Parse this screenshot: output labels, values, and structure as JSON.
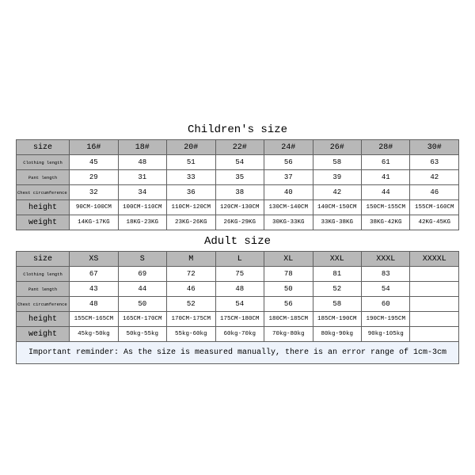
{
  "colors": {
    "headerBg": "#b8b8b8",
    "cellBg": "#ffffff",
    "border": "#606060",
    "noteBg": "#eef3fb",
    "text": "#000000"
  },
  "children": {
    "title": "Children's size",
    "colHeaders": [
      "size",
      "16#",
      "18#",
      "20#",
      "22#",
      "24#",
      "26#",
      "28#",
      "30#"
    ],
    "rows": [
      {
        "label": "Clothing length",
        "small": true,
        "vals": [
          "45",
          "48",
          "51",
          "54",
          "56",
          "58",
          "61",
          "63"
        ]
      },
      {
        "label": "Pant length",
        "small": true,
        "vals": [
          "29",
          "31",
          "33",
          "35",
          "37",
          "39",
          "41",
          "42"
        ]
      },
      {
        "label": "Chest circumference 1/2",
        "small": true,
        "vals": [
          "32",
          "34",
          "36",
          "38",
          "40",
          "42",
          "44",
          "46"
        ]
      },
      {
        "label": "height",
        "small": false,
        "valsSmall": true,
        "vals": [
          "90CM-100CM",
          "100CM-110CM",
          "110CM-120CM",
          "120CM-130CM",
          "130CM-140CM",
          "140CM-150CM",
          "150CM-155CM",
          "155CM-160CM"
        ]
      },
      {
        "label": "weight",
        "small": false,
        "valsSmall": true,
        "vals": [
          "14KG-17KG",
          "18KG-23KG",
          "23KG-26KG",
          "26KG-29KG",
          "30KG-33KG",
          "33KG-38KG",
          "38KG-42KG",
          "42KG-45KG"
        ]
      }
    ]
  },
  "adult": {
    "title": "Adult size",
    "colHeaders": [
      "size",
      "XS",
      "S",
      "M",
      "L",
      "XL",
      "XXL",
      "XXXL",
      "XXXXL"
    ],
    "rows": [
      {
        "label": "Clothing length",
        "small": true,
        "vals": [
          "67",
          "69",
          "72",
          "75",
          "78",
          "81",
          "83",
          ""
        ]
      },
      {
        "label": "Pant length",
        "small": true,
        "vals": [
          "43",
          "44",
          "46",
          "48",
          "50",
          "52",
          "54",
          ""
        ]
      },
      {
        "label": "Chest circumference 1/2",
        "small": true,
        "vals": [
          "48",
          "50",
          "52",
          "54",
          "56",
          "58",
          "60",
          ""
        ]
      },
      {
        "label": "height",
        "small": false,
        "valsSmall": true,
        "vals": [
          "155CM-165CM",
          "165CM-170CM",
          "170CM-175CM",
          "175CM-180CM",
          "180CM-185CM",
          "185CM-190CM",
          "190CM-195CM",
          ""
        ]
      },
      {
        "label": "weight",
        "small": false,
        "valsSmall": true,
        "vals": [
          "45kg-50kg",
          "50kg-55kg",
          "55kg-60kg",
          "60kg-70kg",
          "70kg-80kg",
          "80kg-90kg",
          "90kg-105kg",
          ""
        ]
      }
    ]
  },
  "note": "Important reminder: As the size is measured manually, there is an error range of 1cm-3cm",
  "layout": {
    "rowHeightHeader": 16,
    "rowHeightBody": 16,
    "font": "Courier New"
  }
}
